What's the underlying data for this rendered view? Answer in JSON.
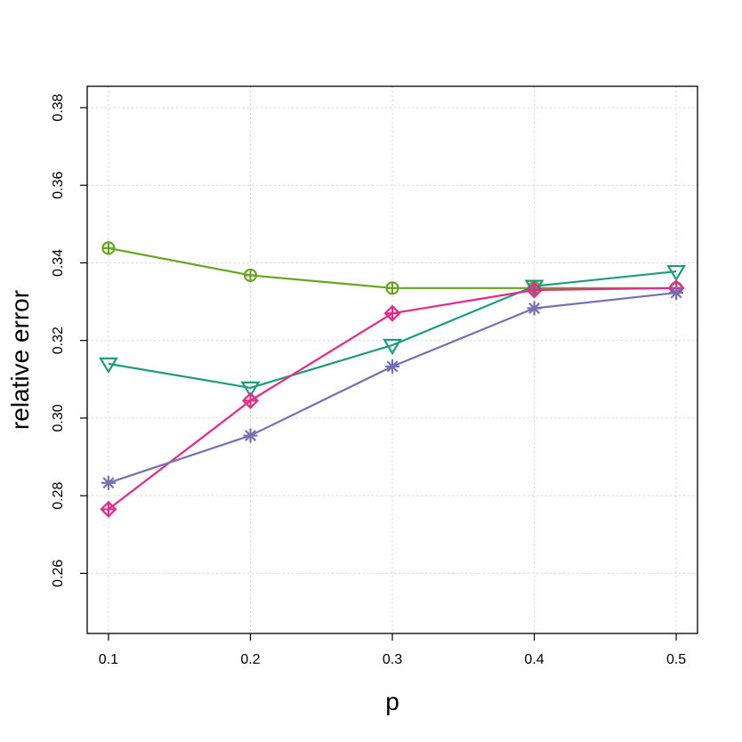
{
  "chart_data": {
    "type": "line",
    "title": "",
    "xlabel": "p",
    "ylabel": "relative error",
    "x": [
      0.1,
      0.2,
      0.3,
      0.4,
      0.5
    ],
    "xlim": [
      0.085,
      0.515
    ],
    "ylim": [
      0.2445,
      0.3855
    ],
    "x_ticks": [
      "0.1",
      "0.2",
      "0.3",
      "0.4",
      "0.5"
    ],
    "y_ticks": [
      "0.26",
      "0.28",
      "0.30",
      "0.32",
      "0.34",
      "0.36",
      "0.38"
    ],
    "grid": true,
    "series": [
      {
        "color": "#66a61e",
        "marker": "circle-plus",
        "values": [
          0.3438,
          0.3368,
          0.3335,
          0.3335,
          0.3335
        ]
      },
      {
        "color": "#1b9e77",
        "marker": "triangle-down",
        "values": [
          0.314,
          0.3078,
          0.3188,
          0.334,
          0.3378
        ]
      },
      {
        "color": "#e7298a",
        "marker": "diamond-plus",
        "values": [
          0.2765,
          0.3045,
          0.327,
          0.333,
          0.3335
        ]
      },
      {
        "color": "#7570b3",
        "marker": "asterisk",
        "values": [
          0.2833,
          0.2955,
          0.3133,
          0.3283,
          0.3323
        ]
      }
    ]
  }
}
